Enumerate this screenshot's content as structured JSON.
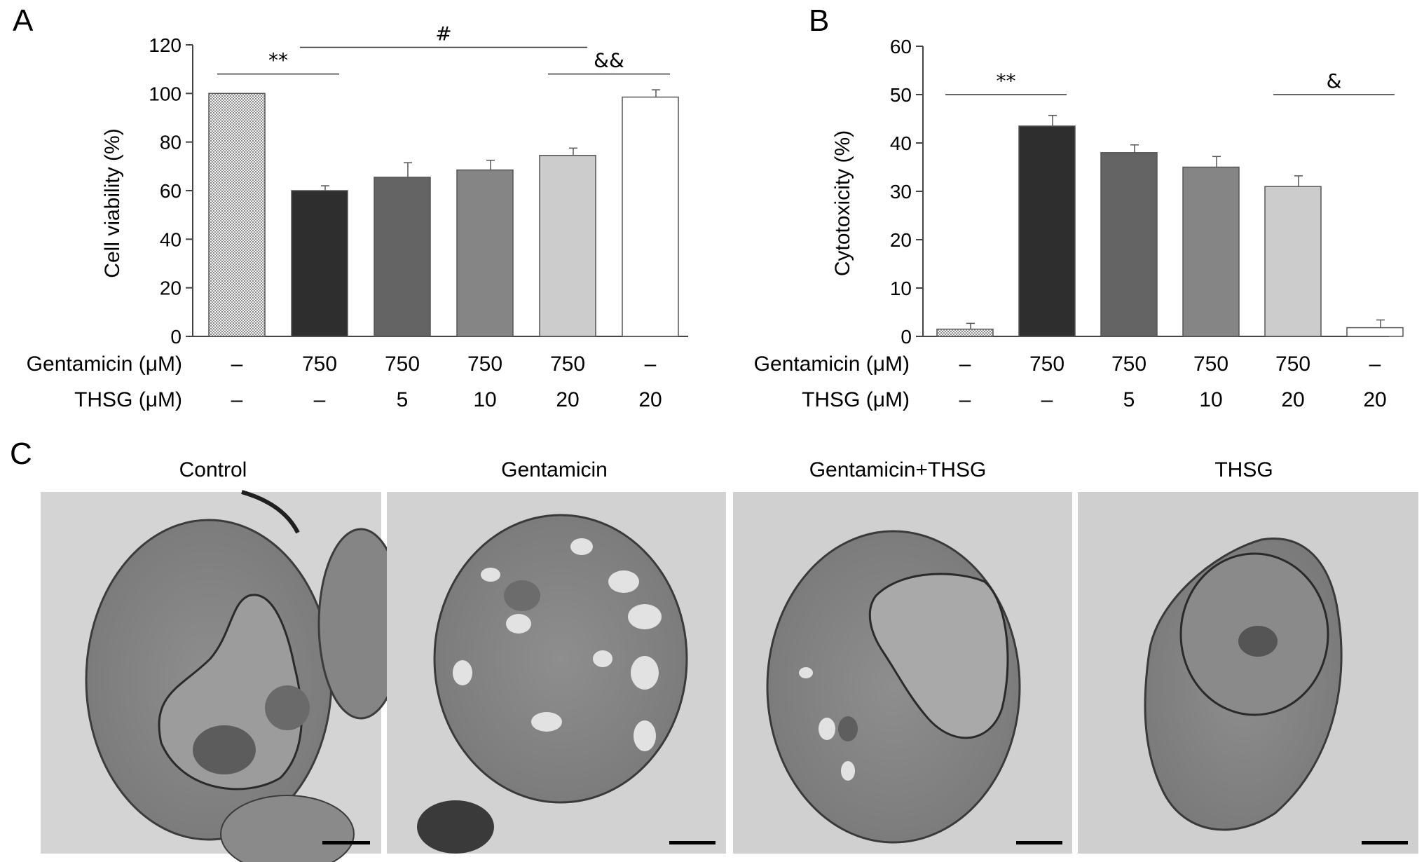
{
  "panels": {
    "a_letter": "A",
    "b_letter": "B",
    "c_letter": "C"
  },
  "condition_rows": [
    {
      "label": "Gentamicin (μM)",
      "values": [
        "–",
        "750",
        "750",
        "750",
        "750",
        "–"
      ]
    },
    {
      "label": "THSG (μM)",
      "values": [
        "–",
        "–",
        "5",
        "10",
        "20",
        "20"
      ]
    }
  ],
  "chart_data": [
    {
      "type": "bar",
      "panel": "A",
      "title": "",
      "xlabel": "",
      "ylabel": "Cell viability (%)",
      "ylim": [
        0,
        120
      ],
      "yticks": [
        0,
        20,
        40,
        60,
        80,
        100,
        120
      ],
      "grid": false,
      "bars": [
        {
          "value": 100,
          "error": 0,
          "fill": "#e6e6e6",
          "pattern": "dotted"
        },
        {
          "value": 60,
          "error": 2,
          "fill": "#2e2e2e"
        },
        {
          "value": 65.5,
          "error": 6,
          "fill": "#646464"
        },
        {
          "value": 68.5,
          "error": 4,
          "fill": "#858585"
        },
        {
          "value": 74.5,
          "error": 3,
          "fill": "#cccccc"
        },
        {
          "value": 98.5,
          "error": 3,
          "fill": "#ffffff"
        }
      ],
      "significance": [
        {
          "label": "**",
          "from": 0,
          "to": 1,
          "y": 108
        },
        {
          "label": "#",
          "from": 1,
          "to": 4,
          "y": 119
        },
        {
          "label": "&&",
          "from": 4,
          "to": 5,
          "y": 108
        }
      ]
    },
    {
      "type": "bar",
      "panel": "B",
      "title": "",
      "xlabel": "",
      "ylabel": "Cytotoxicity (%)",
      "ylim": [
        0,
        60
      ],
      "yticks": [
        0,
        10,
        20,
        30,
        40,
        50,
        60
      ],
      "grid": false,
      "bars": [
        {
          "value": 1.5,
          "error": 1.2,
          "fill": "#e6e6e6",
          "pattern": "dotted"
        },
        {
          "value": 43.5,
          "error": 2.2,
          "fill": "#2e2e2e"
        },
        {
          "value": 38,
          "error": 1.6,
          "fill": "#646464"
        },
        {
          "value": 35,
          "error": 2.2,
          "fill": "#858585"
        },
        {
          "value": 31,
          "error": 2.2,
          "fill": "#cccccc"
        },
        {
          "value": 1.8,
          "error": 1.6,
          "fill": "#ffffff"
        }
      ],
      "significance": [
        {
          "label": "**",
          "from": 0,
          "to": 1,
          "y": 50
        },
        {
          "label": "&",
          "from": 4,
          "to": 5,
          "y": 50
        }
      ]
    }
  ],
  "images": [
    {
      "title": "Control"
    },
    {
      "title": "Gentamicin"
    },
    {
      "title": "Gentamicin+THSG"
    },
    {
      "title": "THSG"
    }
  ]
}
